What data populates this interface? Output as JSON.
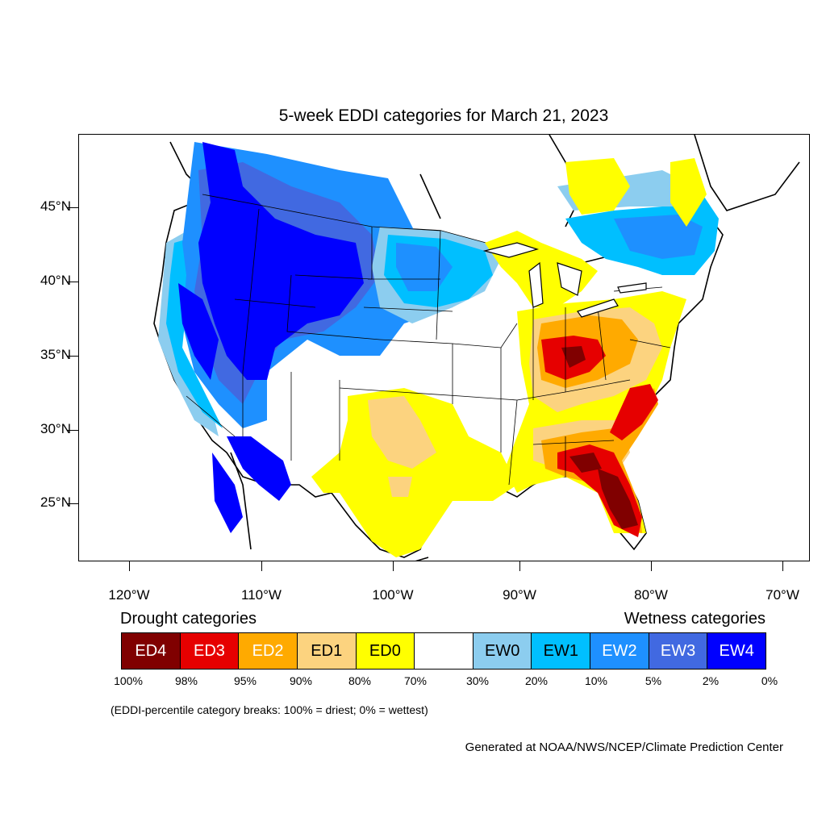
{
  "title": "5-week EDDI categories for March 21, 2023",
  "map": {
    "projection": "lambert-conformal",
    "region": "CONUS",
    "lat_labels": [
      "45°N",
      "40°N",
      "35°N",
      "30°N",
      "25°N"
    ],
    "lon_labels": [
      "120°W",
      "110°W",
      "100°W",
      "90°W",
      "80°W",
      "70°W"
    ],
    "patterns": [
      {
        "category": "EW4",
        "area": "Northern Rockies / Great Basin / Southwest"
      },
      {
        "category": "EW2",
        "area": "Northern Plains and Pacific Northwest"
      },
      {
        "category": "EW1",
        "area": "Upper Midwest and New England"
      },
      {
        "category": "ED0",
        "area": "Southern Plains, Texas, Great Lakes, Mid-Atlantic"
      },
      {
        "category": "ED1",
        "area": "Texas Panhandle and Ohio Valley"
      },
      {
        "category": "ED2",
        "area": "Ohio Valley and Southeast"
      },
      {
        "category": "ED3",
        "area": "Kentucky, Carolinas, Georgia"
      },
      {
        "category": "ED4",
        "area": "Florida peninsula and Kentucky"
      }
    ]
  },
  "legend": {
    "drought_title": "Drought categories",
    "wetness_title": "Wetness categories",
    "categories": [
      {
        "label": "ED4",
        "color": "#800000",
        "text_color": "#ffffff"
      },
      {
        "label": "ED3",
        "color": "#e60000",
        "text_color": "#ffffff"
      },
      {
        "label": "ED2",
        "color": "#ffaa00",
        "text_color": "#ffffff"
      },
      {
        "label": "ED1",
        "color": "#fcd37f",
        "text_color": "#000000"
      },
      {
        "label": "ED0",
        "color": "#ffff00",
        "text_color": "#000000"
      },
      {
        "label": "",
        "color": "#ffffff",
        "text_color": "#000000"
      },
      {
        "label": "EW0",
        "color": "#8ccdef",
        "text_color": "#000000"
      },
      {
        "label": "EW1",
        "color": "#00bfff",
        "text_color": "#000000"
      },
      {
        "label": "EW2",
        "color": "#1e90ff",
        "text_color": "#ffffff"
      },
      {
        "label": "EW3",
        "color": "#4169e1",
        "text_color": "#ffffff"
      },
      {
        "label": "EW4",
        "color": "#0000ff",
        "text_color": "#ffffff"
      }
    ],
    "breaks": [
      "100%",
      "98%",
      "95%",
      "90%",
      "80%",
      "70%",
      "30%",
      "20%",
      "10%",
      "5%",
      "2%",
      "0%"
    ]
  },
  "note": "(EDDI-percentile category breaks: 100% = driest; 0% = wettest)",
  "credit": "Generated at NOAA/NWS/NCEP/Climate Prediction Center"
}
